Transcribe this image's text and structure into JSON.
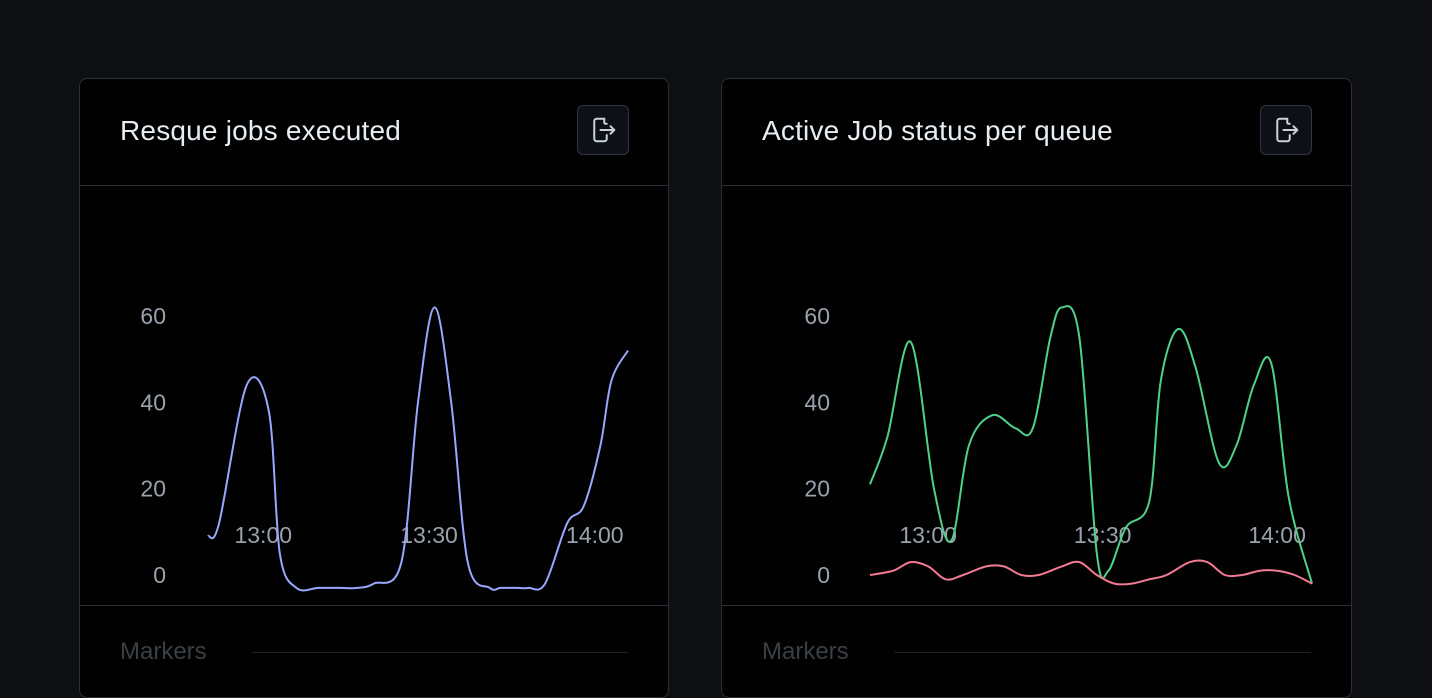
{
  "panels": [
    {
      "title": "Resque jobs executed",
      "export_icon": "export-icon",
      "markers_label": "Markers",
      "chart_data": {
        "type": "line",
        "x_ticks": [
          "13:00",
          "13:30",
          "14:00"
        ],
        "y_ticks": [
          "60",
          "40",
          "20",
          "0"
        ],
        "ylim": [
          -3,
          63
        ],
        "xlim": [
          "12:50",
          "14:06"
        ],
        "series": [
          {
            "color": "#9aa6ff",
            "x": [
              "12:50",
              "12:52",
              "12:57",
              "13:01",
              "13:03",
              "13:06",
              "13:10",
              "13:14",
              "13:17",
              "13:20",
              "13:25",
              "13:28",
              "13:31",
              "13:34",
              "13:37",
              "13:41",
              "13:43",
              "13:46",
              "13:48",
              "13:51",
              "13:55",
              "13:58",
              "14:01",
              "14:03",
              "14:06"
            ],
            "values": [
              9,
              12,
              44,
              38,
              5,
              -3,
              -3,
              -3,
              -3,
              -2,
              3,
              40,
              62,
              40,
              3,
              -3,
              -3,
              -3,
              -3,
              -2,
              12,
              16,
              30,
              45,
              52
            ]
          }
        ]
      }
    },
    {
      "title": "Active Job status per queue",
      "export_icon": "export-icon",
      "markers_label": "Markers",
      "chart_data": {
        "type": "line",
        "x_ticks": [
          "13:00",
          "13:30",
          "14:00"
        ],
        "y_ticks": [
          "60",
          "40",
          "20",
          "0"
        ],
        "ylim": [
          -3,
          63
        ],
        "xlim": [
          "12:50",
          "14:06"
        ],
        "series": [
          {
            "color": "#4fd18a",
            "x": [
              "12:50",
              "12:53",
              "12:57",
              "13:01",
              "13:04",
              "13:07",
              "13:11",
              "13:15",
              "13:18",
              "13:21",
              "13:23",
              "13:26",
              "13:29",
              "13:31",
              "13:34",
              "13:38",
              "13:40",
              "13:43",
              "13:46",
              "13:50",
              "13:53",
              "13:56",
              "13:59",
              "14:02",
              "14:06"
            ],
            "values": [
              21,
              32,
              54,
              20,
              8,
              30,
              37,
              34,
              34,
              55,
              62,
              55,
              5,
              1,
              11,
              17,
              45,
              57,
              48,
              26,
              30,
              44,
              49,
              18,
              -2
            ]
          },
          {
            "color": "#f27a92",
            "x": [
              "12:50",
              "12:54",
              "12:57",
              "13:00",
              "13:03",
              "13:06",
              "13:10",
              "13:13",
              "13:16",
              "13:19",
              "13:23",
              "13:26",
              "13:29",
              "13:32",
              "13:35",
              "13:38",
              "13:41",
              "13:45",
              "13:48",
              "13:51",
              "13:54",
              "13:57",
              "14:00",
              "14:03",
              "14:06"
            ],
            "values": [
              0,
              1,
              3,
              2,
              -1,
              0,
              2,
              2,
              0,
              0,
              2,
              3,
              0,
              -2,
              -2,
              -1,
              0,
              3,
              3,
              0,
              0,
              1,
              1,
              0,
              -2
            ]
          }
        ]
      }
    }
  ]
}
